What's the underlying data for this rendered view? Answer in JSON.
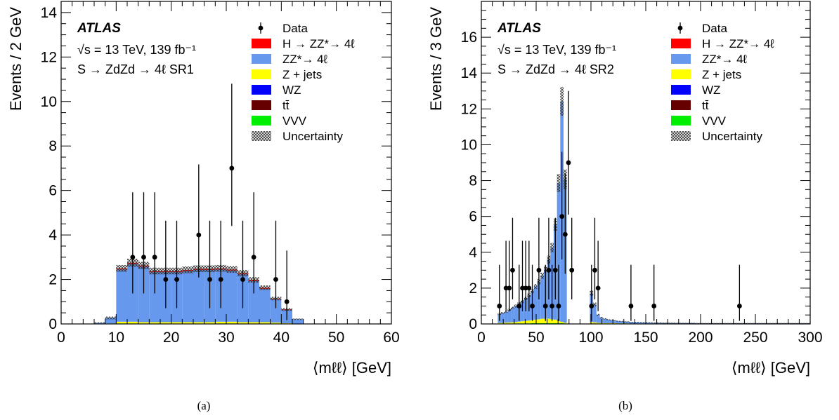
{
  "figure": {
    "sublabels": [
      "(a)",
      "(b)"
    ]
  },
  "legend_entries": [
    {
      "key": "data",
      "label": "Data",
      "style": "marker"
    },
    {
      "key": "higgs",
      "label": "H → ZZ*→ 4ℓ",
      "color": "#ff0000"
    },
    {
      "key": "zz",
      "label": "ZZ*→ 4ℓ",
      "color": "#6699ee"
    },
    {
      "key": "zjets",
      "label": "Z + jets",
      "color": "#ffff00"
    },
    {
      "key": "wz",
      "label": "WZ",
      "color": "#0000ff"
    },
    {
      "key": "ttbar",
      "label": "tt̄",
      "color": "#660000"
    },
    {
      "key": "vvv",
      "label": "VVV",
      "color": "#00ee00"
    },
    {
      "key": "unc",
      "label": "Uncertainty",
      "style": "hatch"
    }
  ],
  "chart_data": [
    {
      "type": "bar",
      "stacked_histogram": true,
      "ylabel": "Events / 2 GeV",
      "xlabel": "⟨mℓℓ⟩ [GeV]",
      "xlim": [
        0,
        60
      ],
      "ylim": [
        0,
        14.5
      ],
      "xticks": [
        0,
        10,
        20,
        30,
        40,
        50,
        60
      ],
      "yticks": [
        0,
        2,
        4,
        6,
        8,
        10,
        12,
        14
      ],
      "atlas_label": "ATLAS",
      "annotation_lines": [
        "√s = 13 TeV, 139 fb⁻¹",
        "S → ZdZd → 4ℓ SR1"
      ],
      "bin_width": 2,
      "bin_edges_start": 6,
      "zz": [
        0.05,
        0.25,
        2.35,
        2.6,
        2.5,
        2.25,
        2.25,
        2.25,
        2.3,
        2.35,
        2.35,
        2.35,
        2.3,
        2.15,
        1.85,
        1.5,
        1.05,
        0.6,
        0.2,
        0,
        0,
        0
      ],
      "higgs": [
        0,
        0,
        0.05,
        0.05,
        0.05,
        0.05,
        0.05,
        0.05,
        0.05,
        0.05,
        0.05,
        0.05,
        0.05,
        0.05,
        0.05,
        0.05,
        0.03,
        0.02,
        0,
        0,
        0,
        0
      ],
      "zjets": [
        0,
        0.02,
        0.08,
        0.08,
        0.06,
        0.06,
        0.06,
        0.06,
        0.06,
        0.06,
        0.06,
        0.08,
        0.08,
        0.06,
        0.06,
        0.06,
        0.04,
        0.02,
        0.01,
        0,
        0,
        0
      ],
      "vvv": [
        0,
        0,
        0.02,
        0.02,
        0.02,
        0.02,
        0.02,
        0.02,
        0.02,
        0.02,
        0.02,
        0.02,
        0.02,
        0.02,
        0.02,
        0.02,
        0.02,
        0.01,
        0,
        0,
        0,
        0
      ],
      "unc_half": [
        0.02,
        0.06,
        0.15,
        0.18,
        0.16,
        0.15,
        0.15,
        0.15,
        0.15,
        0.15,
        0.15,
        0.15,
        0.15,
        0.14,
        0.12,
        0.1,
        0.08,
        0.06,
        0.03,
        0,
        0,
        0
      ],
      "data_points": [
        {
          "x": 13,
          "y": 3,
          "lo": 1.37,
          "hi": 5.92
        },
        {
          "x": 15,
          "y": 3,
          "lo": 1.37,
          "hi": 5.92
        },
        {
          "x": 17,
          "y": 3,
          "lo": 1.37,
          "hi": 5.92
        },
        {
          "x": 19,
          "y": 2,
          "lo": 0.71,
          "hi": 4.64
        },
        {
          "x": 21,
          "y": 2,
          "lo": 0.71,
          "hi": 4.64
        },
        {
          "x": 25,
          "y": 4,
          "lo": 2.09,
          "hi": 7.17
        },
        {
          "x": 27,
          "y": 2,
          "lo": 0.71,
          "hi": 4.64
        },
        {
          "x": 29,
          "y": 2,
          "lo": 0.71,
          "hi": 4.64
        },
        {
          "x": 31,
          "y": 7,
          "lo": 4.4,
          "hi": 10.8
        },
        {
          "x": 33,
          "y": 2,
          "lo": 0.71,
          "hi": 4.64
        },
        {
          "x": 35,
          "y": 3,
          "lo": 1.37,
          "hi": 5.92
        },
        {
          "x": 39,
          "y": 2,
          "lo": 0.71,
          "hi": 4.64
        },
        {
          "x": 41,
          "y": 1,
          "lo": 0.17,
          "hi": 3.3
        }
      ]
    },
    {
      "type": "bar",
      "stacked_histogram": true,
      "ylabel": "Events / 3 GeV",
      "xlabel": "⟨mℓℓ⟩ [GeV]",
      "xlim": [
        0,
        300
      ],
      "ylim": [
        0,
        18
      ],
      "xticks": [
        0,
        50,
        100,
        150,
        200,
        250,
        300
      ],
      "yticks": [
        0,
        2,
        4,
        6,
        8,
        10,
        12,
        14,
        16
      ],
      "atlas_label": "ATLAS",
      "annotation_lines": [
        "√s = 13 TeV, 139 fb⁻¹",
        "S → ZdZd → 4ℓ SR2"
      ],
      "bin_width": 3,
      "bin_edges_start": 15,
      "zz": [
        0.5,
        0.55,
        0.6,
        0.7,
        0.8,
        0.9,
        1.0,
        1.1,
        1.25,
        1.4,
        1.6,
        1.85,
        2.1,
        2.4,
        2.75,
        3.3,
        4.0,
        5.3,
        7.7,
        12.3,
        8.0,
        0.01,
        0,
        0,
        0,
        0,
        0,
        0,
        1.6,
        1.0,
        0.45,
        0.3,
        0.25,
        0.2,
        0.18,
        0.15,
        0.13,
        0.12,
        0.1,
        0.1,
        0.09,
        0.08,
        0.08,
        0.07,
        0.07,
        0.06,
        0.06,
        0.05,
        0.05,
        0.05,
        0.04,
        0.04,
        0.04,
        0.04,
        0.03,
        0.03,
        0.03,
        0.03,
        0.03,
        0.03,
        0.02,
        0.02,
        0.02,
        0.02,
        0.02,
        0.02,
        0.02,
        0.02,
        0.02,
        0.02,
        0.02,
        0.02,
        0.02,
        0.02,
        0.02,
        0.02,
        0.02,
        0.02,
        0.02,
        0.02,
        0.02,
        0.02,
        0.02,
        0.02,
        0.02,
        0.02,
        0.02,
        0.02,
        0.02,
        0.02,
        0.02,
        0.02,
        0.02,
        0.02,
        0.02
      ],
      "higgs": [
        0,
        0,
        0,
        0,
        0,
        0,
        0,
        0,
        0,
        0,
        0,
        0,
        0,
        0,
        0,
        0,
        0,
        0,
        0,
        0,
        0,
        0,
        0,
        0,
        0,
        0,
        0,
        0,
        0,
        0,
        0,
        0,
        0,
        0,
        0,
        0,
        0,
        0,
        0,
        0,
        0,
        0,
        0,
        0,
        0,
        0,
        0,
        0,
        0,
        0,
        0,
        0,
        0,
        0,
        0,
        0,
        0,
        0,
        0,
        0,
        0,
        0,
        0,
        0,
        0,
        0,
        0,
        0,
        0,
        0,
        0,
        0,
        0,
        0,
        0,
        0,
        0,
        0,
        0,
        0,
        0,
        0,
        0,
        0,
        0,
        0,
        0,
        0,
        0,
        0,
        0,
        0,
        0,
        0,
        0
      ],
      "zjets": [
        0.03,
        0.04,
        0.05,
        0.06,
        0.07,
        0.08,
        0.1,
        0.12,
        0.14,
        0.16,
        0.18,
        0.2,
        0.22,
        0.25,
        0.25,
        0.25,
        0.22,
        0.2,
        0.12,
        0.08,
        0.04,
        0,
        0,
        0,
        0,
        0,
        0,
        0,
        0.08,
        0.06,
        0.04,
        0.03,
        0.02,
        0.02,
        0.02,
        0.02,
        0.01,
        0.01,
        0.01,
        0.01,
        0,
        0,
        0,
        0,
        0,
        0,
        0,
        0,
        0,
        0,
        0,
        0,
        0,
        0,
        0,
        0,
        0,
        0,
        0,
        0,
        0,
        0,
        0,
        0,
        0,
        0,
        0,
        0,
        0,
        0,
        0,
        0,
        0,
        0,
        0,
        0,
        0,
        0,
        0,
        0,
        0,
        0,
        0,
        0,
        0,
        0,
        0,
        0,
        0,
        0,
        0,
        0,
        0,
        0,
        0
      ],
      "vvv": [
        0.02,
        0.02,
        0.02,
        0.02,
        0.02,
        0.02,
        0.03,
        0.03,
        0.03,
        0.03,
        0.04,
        0.04,
        0.04,
        0.04,
        0.04,
        0.04,
        0.04,
        0.04,
        0.04,
        0.04,
        0.03,
        0,
        0,
        0,
        0,
        0,
        0,
        0,
        0.03,
        0.03,
        0.02,
        0.02,
        0.02,
        0.02,
        0.02,
        0.02,
        0.02,
        0.02,
        0.02,
        0.02,
        0.02,
        0.02,
        0.02,
        0.02,
        0.02,
        0.02,
        0.02,
        0.02,
        0.02,
        0.02,
        0.02,
        0.02,
        0.02,
        0.02,
        0.02,
        0.02,
        0.02,
        0.02,
        0.02,
        0.02,
        0.02,
        0.02,
        0.02,
        0.02,
        0.02,
        0.02,
        0.02,
        0.02,
        0.02,
        0.02,
        0.02,
        0.02,
        0.02,
        0.02,
        0.02,
        0.02,
        0.02,
        0.02,
        0.02,
        0.02,
        0.02,
        0.02,
        0.02,
        0.02,
        0.02,
        0.02,
        0.02,
        0.02,
        0.02,
        0.02,
        0.02,
        0.02,
        0.02,
        0.02,
        0.02
      ],
      "unc_half": [
        0.05,
        0.05,
        0.05,
        0.06,
        0.07,
        0.08,
        0.08,
        0.09,
        0.1,
        0.11,
        0.12,
        0.13,
        0.15,
        0.17,
        0.19,
        0.22,
        0.26,
        0.34,
        0.5,
        0.8,
        0.55,
        0,
        0,
        0,
        0,
        0,
        0,
        0,
        0.15,
        0.1,
        0.05,
        0.04,
        0.03,
        0.03,
        0.02,
        0.02,
        0.02,
        0.02,
        0.01,
        0.01,
        0.01,
        0.01,
        0.01,
        0.01,
        0.01,
        0.01,
        0.01,
        0.01,
        0.01,
        0.01,
        0.01,
        0.01,
        0.01,
        0.01,
        0.01,
        0.01,
        0.01,
        0.01,
        0.01,
        0.01,
        0.01,
        0.01,
        0.01,
        0.01,
        0.01,
        0.01,
        0.01,
        0.01,
        0.01,
        0.01,
        0.01,
        0.01,
        0.01,
        0.01,
        0.01,
        0.01,
        0.01,
        0.01,
        0.01,
        0.01,
        0.01,
        0.01,
        0.01,
        0.01,
        0.01,
        0.01,
        0.01,
        0.01,
        0.01,
        0.01,
        0.01,
        0.01,
        0.01,
        0.01,
        0.01
      ],
      "data_points": [
        {
          "x": 16.5,
          "y": 1,
          "lo": 0.17,
          "hi": 3.3
        },
        {
          "x": 22.5,
          "y": 2,
          "lo": 0.71,
          "hi": 4.64
        },
        {
          "x": 25.5,
          "y": 2,
          "lo": 0.71,
          "hi": 4.64
        },
        {
          "x": 28.5,
          "y": 3,
          "lo": 1.37,
          "hi": 5.92
        },
        {
          "x": 34.5,
          "y": 1,
          "lo": 0.17,
          "hi": 3.3
        },
        {
          "x": 37.5,
          "y": 2,
          "lo": 0.71,
          "hi": 4.64
        },
        {
          "x": 40.5,
          "y": 2,
          "lo": 0.71,
          "hi": 4.64
        },
        {
          "x": 43.5,
          "y": 2,
          "lo": 0.71,
          "hi": 4.64
        },
        {
          "x": 46.5,
          "y": 1,
          "lo": 0.17,
          "hi": 3.3
        },
        {
          "x": 52.5,
          "y": 3,
          "lo": 1.37,
          "hi": 5.92
        },
        {
          "x": 58.5,
          "y": 1,
          "lo": 0.17,
          "hi": 3.3
        },
        {
          "x": 61.5,
          "y": 3,
          "lo": 1.37,
          "hi": 5.92
        },
        {
          "x": 64.5,
          "y": 1,
          "lo": 0.17,
          "hi": 3.3
        },
        {
          "x": 67.5,
          "y": 3,
          "lo": 1.37,
          "hi": 5.92
        },
        {
          "x": 70.5,
          "y": 1,
          "lo": 0.17,
          "hi": 3.3
        },
        {
          "x": 73.5,
          "y": 6,
          "lo": 3.6,
          "hi": 9.6
        },
        {
          "x": 76.5,
          "y": 5,
          "lo": 2.8,
          "hi": 8.4
        },
        {
          "x": 79.5,
          "y": 9,
          "lo": 6.1,
          "hi": 13.0
        },
        {
          "x": 82.5,
          "y": 3,
          "lo": 1.37,
          "hi": 5.92
        },
        {
          "x": 100.5,
          "y": 1,
          "lo": 0.17,
          "hi": 3.3
        },
        {
          "x": 103.5,
          "y": 3,
          "lo": 1.37,
          "hi": 5.92
        },
        {
          "x": 106.5,
          "y": 2,
          "lo": 0.71,
          "hi": 4.64
        },
        {
          "x": 136.5,
          "y": 1,
          "lo": 0.17,
          "hi": 3.3
        },
        {
          "x": 157.5,
          "y": 1,
          "lo": 0.17,
          "hi": 3.3
        },
        {
          "x": 235.5,
          "y": 1,
          "lo": 0.17,
          "hi": 3.3
        }
      ]
    }
  ]
}
